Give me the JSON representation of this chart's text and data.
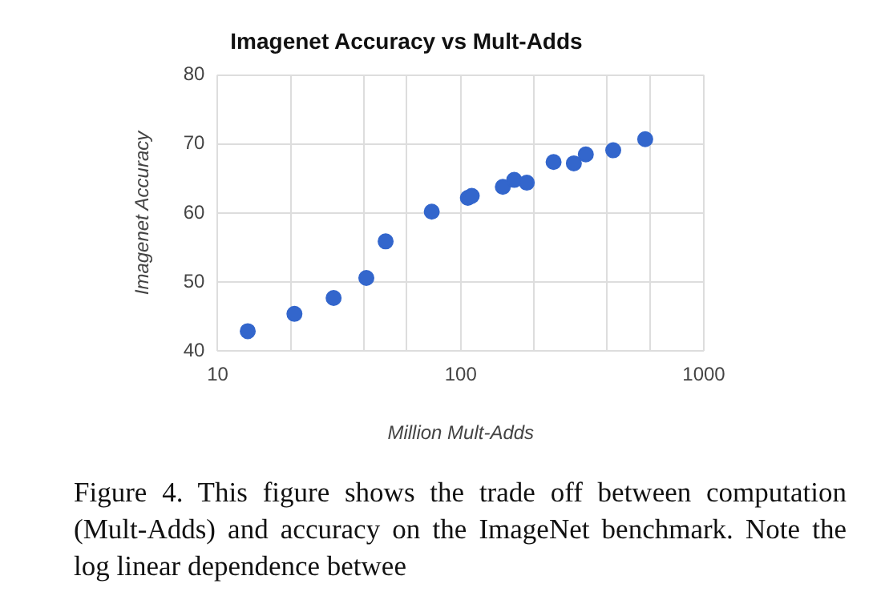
{
  "chart_data": {
    "type": "scatter",
    "title": "Imagenet Accuracy vs Mult-Adds",
    "xlabel": "Million Mult-Adds",
    "ylabel": "Imagenet Accuracy",
    "log": "x",
    "grid": true,
    "legend": false,
    "marker": "circle",
    "xlim": [
      10,
      1000
    ],
    "xticks": [
      10,
      {
        "value": 20,
        "label": null
      },
      {
        "value": 40,
        "label": null
      },
      {
        "value": 60,
        "label": null
      },
      100,
      {
        "value": 200,
        "label": null
      },
      {
        "value": 400,
        "label": null
      },
      {
        "value": 600,
        "label": null
      },
      1000
    ],
    "ylim": [
      40,
      80
    ],
    "yticks": [
      40,
      50,
      60,
      70,
      80
    ],
    "series": [
      {
        "color": "#3366cc",
        "x": [
          13.3,
          20.7,
          30,
          40.9,
          49.1,
          76,
          107,
          111,
          149,
          166,
          187,
          241,
          292,
          327,
          424,
          574
        ],
        "values": [
          42.9,
          45.4,
          47.7,
          50.6,
          55.9,
          60.2,
          62.2,
          62.5,
          63.8,
          64.8,
          64.4,
          67.4,
          67.2,
          68.5,
          69.1,
          70.7
        ]
      }
    ],
    "annotations": [
      "Figure 4. This figure shows the trade off between computation (Mult-Adds) and accuracy on the ImageNet benchmark. Note the log linear dependence betwee"
    ]
  }
}
